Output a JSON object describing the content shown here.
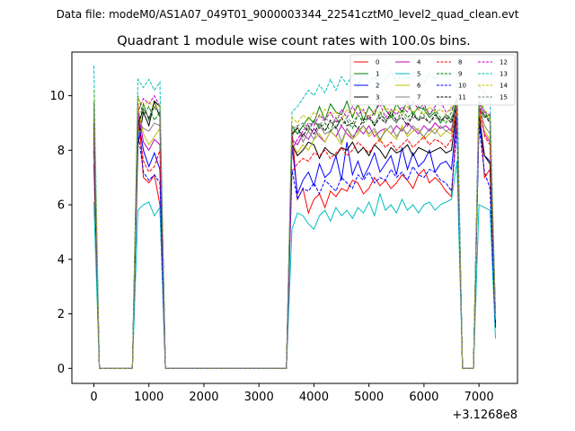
{
  "chart_data": {
    "type": "line",
    "suptitle": "Data file: modeM0/AS1A07_049T01_9000003344_22541cztM0_level2_quad_clean.evt",
    "title": "Quadrant 1 module wise count rates with 100.0s bins.",
    "xlabel": "",
    "ylabel": "",
    "x_offset_label": "+3.1268e8",
    "xlim": [
      -400,
      7700
    ],
    "ylim": [
      -0.55,
      11.6
    ],
    "x_ticks": [
      0,
      1000,
      2000,
      3000,
      4000,
      5000,
      6000,
      7000
    ],
    "y_ticks": [
      0,
      2,
      4,
      6,
      8,
      10
    ],
    "x_tick_labels": [
      "0",
      "1000",
      "2000",
      "3000",
      "4000",
      "5000",
      "6000",
      "7000"
    ],
    "y_tick_labels": [
      "0",
      "2",
      "4",
      "6",
      "8",
      "10"
    ],
    "legend_position": "top-right",
    "series": [
      {
        "name": "0",
        "color": "#ff0000",
        "dash": "solid",
        "y": [
          7.5,
          0,
          0,
          0,
          0,
          0,
          0,
          0,
          9.8,
          7.0,
          6.8,
          7.1,
          6.0,
          0,
          0,
          0,
          0,
          0,
          0,
          0,
          0,
          0,
          0,
          0,
          0,
          0,
          0,
          0,
          0,
          0,
          0,
          0,
          0,
          0,
          0,
          0,
          8.8,
          6.2,
          6.6,
          5.7,
          6.2,
          6.4,
          5.9,
          6.5,
          6.3,
          6.6,
          6.5,
          6.9,
          6.8,
          6.4,
          6.6,
          7.0,
          6.7,
          6.9,
          6.6,
          6.8,
          7.1,
          6.9,
          6.6,
          7.1,
          7.3,
          6.8,
          7.0,
          6.8,
          6.5,
          6.3,
          9.3,
          0,
          0,
          0,
          9.8,
          7.0,
          7.3,
          1.5
        ]
      },
      {
        "name": "1",
        "color": "#008000",
        "dash": "solid",
        "y": [
          9.2,
          0,
          0,
          0,
          0,
          0,
          0,
          0,
          8.6,
          9.7,
          9.1,
          9.8,
          9.2,
          0,
          0,
          0,
          0,
          0,
          0,
          0,
          0,
          0,
          0,
          0,
          0,
          0,
          0,
          0,
          0,
          0,
          0,
          0,
          0,
          0,
          0,
          0,
          8.9,
          8.6,
          8.9,
          9.2,
          9.0,
          9.6,
          9.1,
          9.7,
          9.4,
          9.3,
          9.8,
          9.2,
          9.7,
          9.1,
          9.6,
          9.3,
          9.9,
          9.5,
          9.2,
          9.7,
          9.4,
          9.8,
          9.3,
          9.6,
          9.5,
          9.2,
          9.4,
          9.0,
          9.3,
          9.1,
          9.9,
          0,
          0,
          0,
          9.6,
          9.2,
          9.3,
          1.8
        ]
      },
      {
        "name": "2",
        "color": "#0000ff",
        "dash": "solid",
        "y": [
          8.5,
          0,
          0,
          0,
          0,
          0,
          0,
          0,
          9.2,
          8.0,
          7.4,
          7.9,
          7.3,
          0,
          0,
          0,
          0,
          0,
          0,
          0,
          0,
          0,
          0,
          0,
          0,
          0,
          0,
          0,
          0,
          0,
          0,
          0,
          0,
          0,
          0,
          0,
          8.2,
          6.4,
          6.9,
          7.2,
          6.7,
          7.5,
          7.0,
          7.2,
          7.8,
          6.9,
          8.3,
          7.1,
          7.6,
          7.0,
          7.4,
          7.9,
          7.2,
          7.5,
          7.8,
          7.1,
          8.1,
          7.3,
          7.9,
          7.4,
          7.6,
          8.0,
          7.2,
          7.5,
          7.6,
          7.3,
          9.4,
          0,
          0,
          0,
          9.0,
          7.8,
          7.6,
          1.6
        ]
      },
      {
        "name": "3",
        "color": "#000000",
        "dash": "solid",
        "y": [
          8.0,
          0,
          0,
          0,
          0,
          0,
          0,
          0,
          8.2,
          9.4,
          8.9,
          9.8,
          9.6,
          0,
          0,
          0,
          0,
          0,
          0,
          0,
          0,
          0,
          0,
          0,
          0,
          0,
          0,
          0,
          0,
          0,
          0,
          0,
          0,
          0,
          0,
          0,
          8.2,
          7.8,
          8.0,
          8.3,
          8.2,
          7.7,
          8.1,
          7.9,
          7.8,
          8.1,
          8.0,
          8.3,
          7.9,
          8.1,
          7.8,
          8.2,
          8.0,
          7.7,
          8.1,
          7.9,
          8.0,
          8.2,
          7.8,
          8.1,
          8.0,
          7.9,
          8.0,
          8.1,
          7.9,
          8.0,
          9.6,
          0,
          0,
          0,
          9.3,
          7.8,
          7.5,
          1.7
        ]
      },
      {
        "name": "4",
        "color": "#bf00bf",
        "dash": "solid",
        "y": [
          8.6,
          0,
          0,
          0,
          0,
          0,
          0,
          0,
          9.5,
          8.3,
          8.0,
          8.4,
          8.2,
          0,
          0,
          0,
          0,
          0,
          0,
          0,
          0,
          0,
          0,
          0,
          0,
          0,
          0,
          0,
          0,
          0,
          0,
          0,
          0,
          0,
          0,
          0,
          8.4,
          8.2,
          8.6,
          8.4,
          8.8,
          8.5,
          8.3,
          8.7,
          8.5,
          8.9,
          8.6,
          8.4,
          8.8,
          8.6,
          8.9,
          8.5,
          8.7,
          8.8,
          8.6,
          8.9,
          8.7,
          9.0,
          8.8,
          8.6,
          8.9,
          8.7,
          9.0,
          8.8,
          8.9,
          8.7,
          9.7,
          0,
          0,
          0,
          9.5,
          8.6,
          8.3,
          1.9
        ]
      },
      {
        "name": "5",
        "color": "#00bfbf",
        "dash": "solid",
        "y": [
          6.1,
          0,
          0,
          0,
          0,
          0,
          0,
          0,
          5.8,
          6.0,
          6.1,
          5.6,
          5.9,
          0,
          0,
          0,
          0,
          0,
          0,
          0,
          0,
          0,
          0,
          0,
          0,
          0,
          0,
          0,
          0,
          0,
          0,
          0,
          0,
          0,
          0,
          0,
          5.1,
          5.7,
          5.6,
          5.3,
          5.1,
          5.6,
          5.8,
          5.4,
          5.9,
          5.6,
          5.8,
          5.5,
          5.9,
          5.7,
          6.1,
          5.6,
          6.4,
          5.8,
          6.0,
          5.7,
          6.2,
          5.8,
          6.0,
          5.7,
          6.0,
          6.1,
          5.8,
          6.0,
          6.1,
          6.2,
          7.6,
          0,
          0,
          0,
          6.0,
          5.9,
          5.8,
          1.1
        ]
      },
      {
        "name": "6",
        "color": "#bfbf00",
        "dash": "solid",
        "y": [
          8.8,
          0,
          0,
          0,
          0,
          0,
          0,
          0,
          9.6,
          8.6,
          8.2,
          8.5,
          8.8,
          0,
          0,
          0,
          0,
          0,
          0,
          0,
          0,
          0,
          0,
          0,
          0,
          0,
          0,
          0,
          0,
          0,
          0,
          0,
          0,
          0,
          0,
          0,
          8.3,
          7.9,
          8.2,
          8.0,
          8.4,
          8.6,
          8.3,
          8.7,
          8.5,
          8.2,
          8.8,
          8.4,
          8.6,
          8.9,
          8.5,
          8.7,
          8.3,
          8.8,
          8.6,
          8.4,
          8.9,
          8.5,
          8.7,
          8.8,
          8.4,
          8.6,
          8.8,
          8.5,
          8.7,
          8.6,
          9.5,
          0,
          0,
          0,
          9.4,
          8.7,
          8.4,
          1.8
        ]
      },
      {
        "name": "7",
        "color": "#808080",
        "dash": "solid",
        "y": [
          8.4,
          0,
          0,
          0,
          0,
          0,
          0,
          0,
          9.1,
          8.8,
          8.7,
          9.0,
          8.9,
          0,
          0,
          0,
          0,
          0,
          0,
          0,
          0,
          0,
          0,
          0,
          0,
          0,
          0,
          0,
          0,
          0,
          0,
          0,
          0,
          0,
          0,
          0,
          8.5,
          8.9,
          8.3,
          8.7,
          8.4,
          8.9,
          8.6,
          8.7,
          8.9,
          8.3,
          8.8,
          8.5,
          8.7,
          8.9,
          8.6,
          8.8,
          8.4,
          8.7,
          8.9,
          8.5,
          8.8,
          8.6,
          8.9,
          8.7,
          8.5,
          8.8,
          8.6,
          8.9,
          8.7,
          8.8,
          9.8,
          0,
          0,
          0,
          9.7,
          8.9,
          8.6,
          1.8
        ]
      },
      {
        "name": "8",
        "color": "#ff0000",
        "dash": "dashed",
        "y": [
          9.5,
          0,
          0,
          0,
          0,
          0,
          0,
          0,
          9.1,
          7.6,
          7.2,
          7.4,
          8.0,
          0,
          0,
          0,
          0,
          0,
          0,
          0,
          0,
          0,
          0,
          0,
          0,
          0,
          0,
          0,
          0,
          0,
          0,
          0,
          0,
          0,
          0,
          0,
          7.2,
          7.5,
          7.7,
          7.6,
          7.9,
          7.8,
          8.0,
          7.7,
          7.9,
          8.1,
          7.8,
          8.0,
          8.3,
          8.1,
          7.9,
          8.2,
          8.4,
          8.1,
          8.3,
          8.0,
          8.2,
          8.4,
          8.1,
          8.3,
          8.5,
          8.2,
          8.4,
          8.3,
          8.1,
          8.4,
          9.6,
          0,
          0,
          0,
          9.7,
          8.5,
          8.2,
          1.9
        ]
      },
      {
        "name": "9",
        "color": "#008000",
        "dash": "dashed",
        "y": [
          9.8,
          0,
          0,
          0,
          0,
          0,
          0,
          0,
          10.0,
          9.3,
          9.6,
          9.1,
          9.4,
          0,
          0,
          0,
          0,
          0,
          0,
          0,
          0,
          0,
          0,
          0,
          0,
          0,
          0,
          0,
          0,
          0,
          0,
          0,
          0,
          0,
          0,
          0,
          8.8,
          8.6,
          8.9,
          8.7,
          9.1,
          8.8,
          9.0,
          8.7,
          9.2,
          8.9,
          9.1,
          8.8,
          9.3,
          9.0,
          9.2,
          8.9,
          9.4,
          9.1,
          9.3,
          9.0,
          9.5,
          9.2,
          9.4,
          9.1,
          9.6,
          9.3,
          9.5,
          9.2,
          9.0,
          9.4,
          9.9,
          0,
          0,
          0,
          9.8,
          9.4,
          9.1,
          1.9
        ]
      },
      {
        "name": "10",
        "color": "#0000ff",
        "dash": "dashed",
        "y": [
          8.9,
          0,
          0,
          0,
          0,
          0,
          0,
          0,
          8.7,
          7.2,
          6.9,
          7.1,
          6.8,
          0,
          0,
          0,
          0,
          0,
          0,
          0,
          0,
          0,
          0,
          0,
          0,
          0,
          0,
          0,
          0,
          0,
          0,
          0,
          0,
          0,
          0,
          0,
          7.3,
          6.2,
          6.6,
          6.5,
          6.8,
          6.4,
          6.9,
          6.7,
          6.5,
          7.0,
          6.8,
          6.6,
          7.1,
          6.9,
          7.2,
          6.8,
          7.0,
          6.9,
          7.3,
          7.0,
          7.2,
          6.9,
          7.4,
          7.1,
          7.0,
          7.3,
          7.2,
          6.9,
          6.8,
          6.5,
          8.8,
          0,
          0,
          0,
          8.9,
          7.2,
          6.6,
          1.5
        ]
      },
      {
        "name": "11",
        "color": "#000000",
        "dash": "dashed",
        "y": [
          9.0,
          0,
          0,
          0,
          0,
          0,
          0,
          0,
          9.0,
          9.5,
          9.2,
          9.6,
          9.3,
          0,
          0,
          0,
          0,
          0,
          0,
          0,
          0,
          0,
          0,
          0,
          0,
          0,
          0,
          0,
          0,
          0,
          0,
          0,
          0,
          0,
          0,
          0,
          8.6,
          8.8,
          8.5,
          8.9,
          8.6,
          9.0,
          8.7,
          9.1,
          8.8,
          9.2,
          8.9,
          9.0,
          8.8,
          9.1,
          9.3,
          8.9,
          9.2,
          9.0,
          9.4,
          9.1,
          9.2,
          8.9,
          9.3,
          9.1,
          9.2,
          9.0,
          9.3,
          9.1,
          9.2,
          9.0,
          9.7,
          0,
          0,
          0,
          9.6,
          9.3,
          9.0,
          1.8
        ]
      },
      {
        "name": "12",
        "color": "#bf00bf",
        "dash": "dashed",
        "y": [
          9.7,
          0,
          0,
          0,
          0,
          0,
          0,
          0,
          9.4,
          9.9,
          9.7,
          10.0,
          9.6,
          0,
          0,
          0,
          0,
          0,
          0,
          0,
          0,
          0,
          0,
          0,
          0,
          0,
          0,
          0,
          0,
          0,
          0,
          0,
          0,
          0,
          0,
          0,
          8.0,
          8.4,
          8.7,
          9.0,
          8.9,
          9.3,
          9.1,
          9.4,
          9.0,
          9.5,
          9.2,
          9.6,
          9.3,
          9.5,
          9.1,
          9.4,
          9.7,
          9.2,
          9.5,
          9.3,
          9.6,
          9.4,
          9.8,
          9.5,
          9.7,
          9.3,
          9.6,
          9.8,
          9.4,
          9.5,
          9.8,
          0,
          0,
          0,
          9.7,
          9.4,
          9.3,
          1.9
        ]
      },
      {
        "name": "13",
        "color": "#00bfbf",
        "dash": "dashed",
        "y": [
          11.1,
          0,
          0,
          0,
          0,
          0,
          0,
          0,
          10.6,
          10.3,
          10.6,
          10.2,
          10.5,
          0,
          0,
          0,
          0,
          0,
          0,
          0,
          0,
          0,
          0,
          0,
          0,
          0,
          0,
          0,
          0,
          0,
          0,
          0,
          0,
          0,
          0,
          0,
          9.4,
          9.6,
          9.9,
          10.2,
          10.0,
          10.4,
          10.1,
          10.6,
          10.2,
          10.7,
          10.4,
          10.8,
          10.3,
          10.9,
          10.5,
          10.7,
          10.4,
          10.6,
          10.9,
          10.5,
          10.8,
          10.6,
          10.9,
          10.7,
          10.5,
          10.8,
          10.6,
          10.9,
          10.7,
          10.8,
          10.9,
          0,
          0,
          0,
          10.4,
          10.1,
          9.9,
          2.0
        ]
      },
      {
        "name": "14",
        "color": "#bfbf00",
        "dash": "dashed",
        "y": [
          10.2,
          0,
          0,
          0,
          0,
          0,
          0,
          0,
          9.9,
          9.6,
          9.8,
          9.5,
          9.7,
          0,
          0,
          0,
          0,
          0,
          0,
          0,
          0,
          0,
          0,
          0,
          0,
          0,
          0,
          0,
          0,
          0,
          0,
          0,
          0,
          0,
          0,
          0,
          9.2,
          9.0,
          9.3,
          9.1,
          9.4,
          9.2,
          9.5,
          9.3,
          9.4,
          9.1,
          9.5,
          9.3,
          9.6,
          9.4,
          9.2,
          9.5,
          9.3,
          9.6,
          9.4,
          9.5,
          9.3,
          9.6,
          9.4,
          9.5,
          9.3,
          9.6,
          9.4,
          9.5,
          9.3,
          9.6,
          9.8,
          0,
          0,
          0,
          9.9,
          9.5,
          9.2,
          1.9
        ]
      },
      {
        "name": "15",
        "color": "#808080",
        "dash": "dashed",
        "y": [
          9.6,
          0,
          0,
          0,
          0,
          0,
          0,
          0,
          9.3,
          9.5,
          9.2,
          9.6,
          9.4,
          0,
          0,
          0,
          0,
          0,
          0,
          0,
          0,
          0,
          0,
          0,
          0,
          0,
          0,
          0,
          0,
          0,
          0,
          0,
          0,
          0,
          0,
          0,
          8.8,
          8.9,
          9.0,
          8.8,
          9.1,
          8.9,
          9.2,
          9.0,
          9.1,
          8.9,
          9.2,
          9.0,
          9.3,
          9.1,
          9.2,
          9.0,
          9.3,
          9.1,
          9.2,
          9.0,
          9.3,
          9.1,
          9.2,
          9.1,
          9.3,
          9.0,
          9.2,
          9.1,
          9.3,
          9.2,
          9.7,
          0,
          0,
          0,
          9.6,
          9.3,
          9.1,
          1.8
        ]
      }
    ]
  }
}
